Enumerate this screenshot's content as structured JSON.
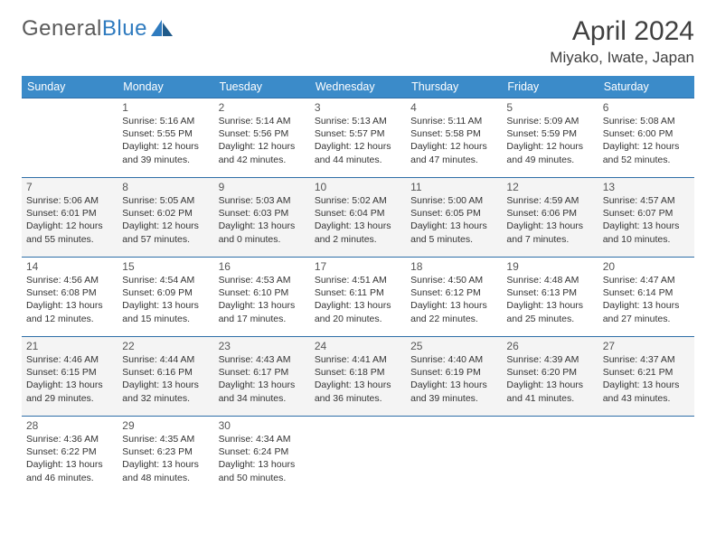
{
  "brand": {
    "part1": "General",
    "part2": "Blue"
  },
  "title": "April 2024",
  "location": "Miyako, Iwate, Japan",
  "colors": {
    "header_bg": "#3b8bc9",
    "header_text": "#ffffff",
    "row_border": "#2f6fa8",
    "alt_row_bg": "#f4f4f4",
    "text": "#333333",
    "logo_blue": "#2f7bbf"
  },
  "weekdays": [
    "Sunday",
    "Monday",
    "Tuesday",
    "Wednesday",
    "Thursday",
    "Friday",
    "Saturday"
  ],
  "weeks": [
    [
      null,
      {
        "d": "1",
        "sr": "5:16 AM",
        "ss": "5:55 PM",
        "dl": "12 hours and 39 minutes."
      },
      {
        "d": "2",
        "sr": "5:14 AM",
        "ss": "5:56 PM",
        "dl": "12 hours and 42 minutes."
      },
      {
        "d": "3",
        "sr": "5:13 AM",
        "ss": "5:57 PM",
        "dl": "12 hours and 44 minutes."
      },
      {
        "d": "4",
        "sr": "5:11 AM",
        "ss": "5:58 PM",
        "dl": "12 hours and 47 minutes."
      },
      {
        "d": "5",
        "sr": "5:09 AM",
        "ss": "5:59 PM",
        "dl": "12 hours and 49 minutes."
      },
      {
        "d": "6",
        "sr": "5:08 AM",
        "ss": "6:00 PM",
        "dl": "12 hours and 52 minutes."
      }
    ],
    [
      {
        "d": "7",
        "sr": "5:06 AM",
        "ss": "6:01 PM",
        "dl": "12 hours and 55 minutes."
      },
      {
        "d": "8",
        "sr": "5:05 AM",
        "ss": "6:02 PM",
        "dl": "12 hours and 57 minutes."
      },
      {
        "d": "9",
        "sr": "5:03 AM",
        "ss": "6:03 PM",
        "dl": "13 hours and 0 minutes."
      },
      {
        "d": "10",
        "sr": "5:02 AM",
        "ss": "6:04 PM",
        "dl": "13 hours and 2 minutes."
      },
      {
        "d": "11",
        "sr": "5:00 AM",
        "ss": "6:05 PM",
        "dl": "13 hours and 5 minutes."
      },
      {
        "d": "12",
        "sr": "4:59 AM",
        "ss": "6:06 PM",
        "dl": "13 hours and 7 minutes."
      },
      {
        "d": "13",
        "sr": "4:57 AM",
        "ss": "6:07 PM",
        "dl": "13 hours and 10 minutes."
      }
    ],
    [
      {
        "d": "14",
        "sr": "4:56 AM",
        "ss": "6:08 PM",
        "dl": "13 hours and 12 minutes."
      },
      {
        "d": "15",
        "sr": "4:54 AM",
        "ss": "6:09 PM",
        "dl": "13 hours and 15 minutes."
      },
      {
        "d": "16",
        "sr": "4:53 AM",
        "ss": "6:10 PM",
        "dl": "13 hours and 17 minutes."
      },
      {
        "d": "17",
        "sr": "4:51 AM",
        "ss": "6:11 PM",
        "dl": "13 hours and 20 minutes."
      },
      {
        "d": "18",
        "sr": "4:50 AM",
        "ss": "6:12 PM",
        "dl": "13 hours and 22 minutes."
      },
      {
        "d": "19",
        "sr": "4:48 AM",
        "ss": "6:13 PM",
        "dl": "13 hours and 25 minutes."
      },
      {
        "d": "20",
        "sr": "4:47 AM",
        "ss": "6:14 PM",
        "dl": "13 hours and 27 minutes."
      }
    ],
    [
      {
        "d": "21",
        "sr": "4:46 AM",
        "ss": "6:15 PM",
        "dl": "13 hours and 29 minutes."
      },
      {
        "d": "22",
        "sr": "4:44 AM",
        "ss": "6:16 PM",
        "dl": "13 hours and 32 minutes."
      },
      {
        "d": "23",
        "sr": "4:43 AM",
        "ss": "6:17 PM",
        "dl": "13 hours and 34 minutes."
      },
      {
        "d": "24",
        "sr": "4:41 AM",
        "ss": "6:18 PM",
        "dl": "13 hours and 36 minutes."
      },
      {
        "d": "25",
        "sr": "4:40 AM",
        "ss": "6:19 PM",
        "dl": "13 hours and 39 minutes."
      },
      {
        "d": "26",
        "sr": "4:39 AM",
        "ss": "6:20 PM",
        "dl": "13 hours and 41 minutes."
      },
      {
        "d": "27",
        "sr": "4:37 AM",
        "ss": "6:21 PM",
        "dl": "13 hours and 43 minutes."
      }
    ],
    [
      {
        "d": "28",
        "sr": "4:36 AM",
        "ss": "6:22 PM",
        "dl": "13 hours and 46 minutes."
      },
      {
        "d": "29",
        "sr": "4:35 AM",
        "ss": "6:23 PM",
        "dl": "13 hours and 48 minutes."
      },
      {
        "d": "30",
        "sr": "4:34 AM",
        "ss": "6:24 PM",
        "dl": "13 hours and 50 minutes."
      },
      null,
      null,
      null,
      null
    ]
  ],
  "labels": {
    "sunrise": "Sunrise:",
    "sunset": "Sunset:",
    "daylight": "Daylight:"
  }
}
